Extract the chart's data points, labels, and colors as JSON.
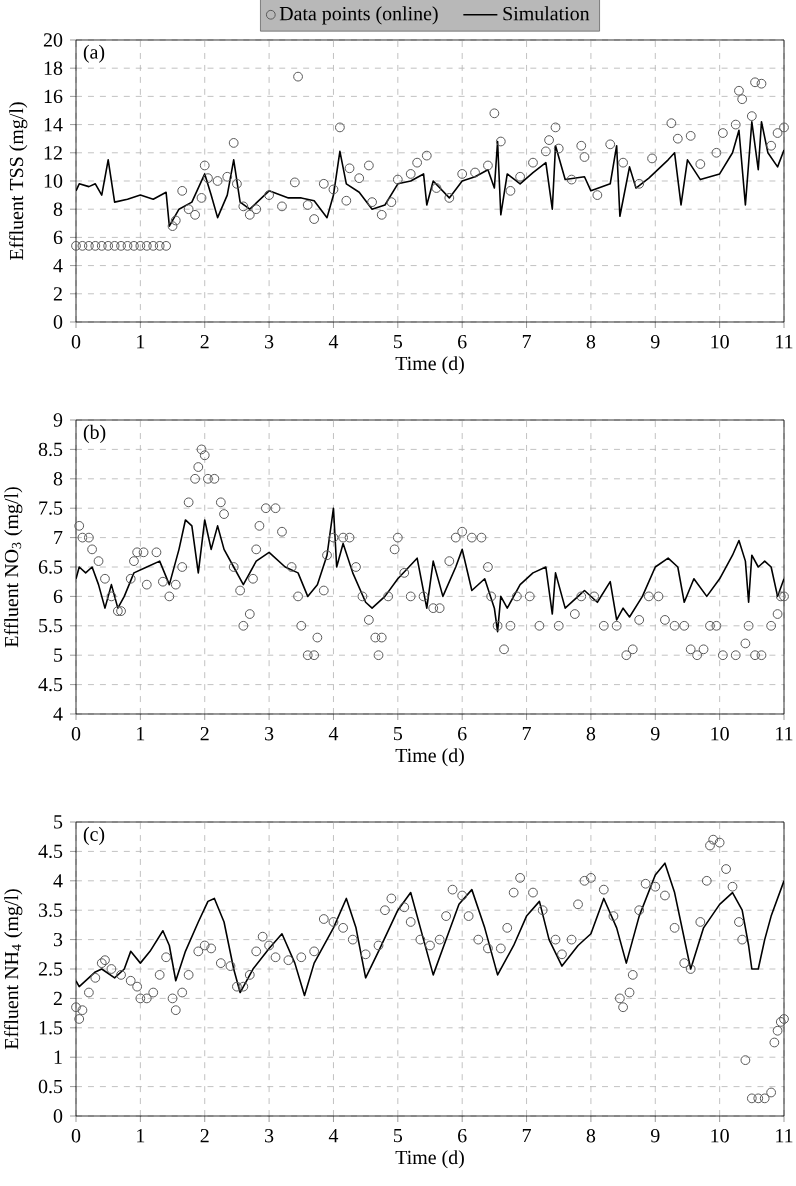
{
  "chart_data": [
    {
      "type": "line",
      "xlabel": "Time (d)",
      "ylabel": "Effluent TSS (mg/l)",
      "annotations": [
        "(a)"
      ],
      "grid": true,
      "legend": "top",
      "xlim": [
        0,
        11
      ],
      "ylim": [
        0,
        20
      ],
      "xticks": [
        0,
        1,
        2,
        3,
        4,
        5,
        6,
        7,
        8,
        9,
        10,
        11
      ],
      "yticks": [
        0,
        2,
        4,
        6,
        8,
        10,
        12,
        14,
        16,
        18,
        20
      ],
      "series": [
        {
          "name": "Data points (online)",
          "type": "scatter",
          "marker": "circle",
          "color": "#595959",
          "x": [
            0,
            0.1,
            0.2,
            0.3,
            0.4,
            0.5,
            0.6,
            0.7,
            0.8,
            0.9,
            1.0,
            1.1,
            1.2,
            1.3,
            1.4,
            1.5,
            1.55,
            1.65,
            1.75,
            1.85,
            1.95,
            2.0,
            2.05,
            2.2,
            2.35,
            2.45,
            2.5,
            2.6,
            2.7,
            2.8,
            3.0,
            3.2,
            3.4,
            3.45,
            3.6,
            3.7,
            3.85,
            4.0,
            4.1,
            4.2,
            4.25,
            4.4,
            4.55,
            4.6,
            4.75,
            4.9,
            5.0,
            5.2,
            5.3,
            5.45,
            5.6,
            5.8,
            6.0,
            6.2,
            6.4,
            6.5,
            6.6,
            6.75,
            6.9,
            7.1,
            7.3,
            7.35,
            7.45,
            7.5,
            7.7,
            7.85,
            7.9,
            8.1,
            8.3,
            8.5,
            8.75,
            8.95,
            9.25,
            9.35,
            9.55,
            9.7,
            9.95,
            10.05,
            10.25,
            10.3,
            10.35,
            10.5,
            10.55,
            10.65,
            10.8,
            10.9,
            11.0
          ],
          "values": [
            5.4,
            5.4,
            5.4,
            5.4,
            5.4,
            5.4,
            5.4,
            5.4,
            5.4,
            5.4,
            5.4,
            5.4,
            5.4,
            5.4,
            5.4,
            6.8,
            7.2,
            9.3,
            8.0,
            7.6,
            8.8,
            11.1,
            10.2,
            10.0,
            10.3,
            12.7,
            9.8,
            8.2,
            7.6,
            8.0,
            9.0,
            8.2,
            9.9,
            17.4,
            8.3,
            7.3,
            9.8,
            9.4,
            13.8,
            8.6,
            10.9,
            10.2,
            11.1,
            8.5,
            7.6,
            8.5,
            10.1,
            10.5,
            11.3,
            11.8,
            9.5,
            8.8,
            10.5,
            10.6,
            11.1,
            14.8,
            12.8,
            9.3,
            10.3,
            11.3,
            12.1,
            12.9,
            13.8,
            12.3,
            10.1,
            12.5,
            11.7,
            9.0,
            12.6,
            11.3,
            9.8,
            11.6,
            14.1,
            13.0,
            13.2,
            11.2,
            12.0,
            13.4,
            14.0,
            16.4,
            15.8,
            14.6,
            17.0,
            16.9,
            12.5,
            13.4,
            13.8
          ]
        },
        {
          "name": "Simulation",
          "marker": "none",
          "line_style": "solid",
          "color": "#000000",
          "x": [
            0,
            0.05,
            0.2,
            0.3,
            0.4,
            0.5,
            0.6,
            0.8,
            1.0,
            1.2,
            1.4,
            1.45,
            1.6,
            1.8,
            2.0,
            2.1,
            2.2,
            2.35,
            2.45,
            2.55,
            2.7,
            3.0,
            3.3,
            3.5,
            3.7,
            3.9,
            4.0,
            4.1,
            4.2,
            4.4,
            4.6,
            4.8,
            5.0,
            5.2,
            5.4,
            5.45,
            5.55,
            5.8,
            6.0,
            6.2,
            6.4,
            6.5,
            6.55,
            6.6,
            6.7,
            6.9,
            7.1,
            7.3,
            7.4,
            7.45,
            7.6,
            7.9,
            8.0,
            8.3,
            8.4,
            8.45,
            8.6,
            8.7,
            8.9,
            9.2,
            9.3,
            9.4,
            9.5,
            9.7,
            10.0,
            10.2,
            10.3,
            10.4,
            10.5,
            10.6,
            10.65,
            10.75,
            10.9,
            11.0
          ],
          "values": [
            9.3,
            9.8,
            9.6,
            9.8,
            9.0,
            11.5,
            8.5,
            8.7,
            9.0,
            8.7,
            9.2,
            6.8,
            8.0,
            8.5,
            10.5,
            9.0,
            7.4,
            9.0,
            11.5,
            8.5,
            8.0,
            9.3,
            8.8,
            8.8,
            8.6,
            7.4,
            9.0,
            12.1,
            9.8,
            9.2,
            8.0,
            8.3,
            9.8,
            10.0,
            10.5,
            8.3,
            10.0,
            8.8,
            10.0,
            10.3,
            10.8,
            9.5,
            12.8,
            7.6,
            10.5,
            9.8,
            10.6,
            11.3,
            8.0,
            12.5,
            10.1,
            10.3,
            9.3,
            9.8,
            12.5,
            7.5,
            11.0,
            9.5,
            10.2,
            11.5,
            12.0,
            8.3,
            11.5,
            10.1,
            10.5,
            12.0,
            13.6,
            8.3,
            14.2,
            10.8,
            14.2,
            12.0,
            11.0,
            12.2
          ]
        }
      ]
    },
    {
      "type": "line",
      "xlabel": "Time (d)",
      "ylabel": "Effluent NO$_{3}$ (mg/l)",
      "annotations": [
        "(b)"
      ],
      "grid": true,
      "xlim": [
        0,
        11
      ],
      "ylim": [
        4,
        9
      ],
      "xticks": [
        0,
        1,
        2,
        3,
        4,
        5,
        6,
        7,
        8,
        9,
        10,
        11
      ],
      "yticks": [
        4,
        4.5,
        5,
        5.5,
        6,
        6.5,
        7,
        7.5,
        8,
        8.5,
        9
      ],
      "series": [
        {
          "type": "scatter",
          "marker": "circle",
          "color": "#595959",
          "x": [
            0.05,
            0.1,
            0.2,
            0.25,
            0.35,
            0.45,
            0.55,
            0.65,
            0.7,
            0.85,
            0.9,
            0.95,
            1.05,
            1.1,
            1.25,
            1.35,
            1.45,
            1.55,
            1.65,
            1.75,
            1.85,
            1.9,
            1.95,
            2.0,
            2.05,
            2.15,
            2.25,
            2.3,
            2.45,
            2.55,
            2.6,
            2.7,
            2.75,
            2.8,
            2.85,
            2.95,
            3.1,
            3.2,
            3.35,
            3.45,
            3.5,
            3.6,
            3.7,
            3.75,
            3.85,
            3.9,
            4.0,
            4.15,
            4.25,
            4.35,
            4.45,
            4.55,
            4.65,
            4.7,
            4.75,
            4.85,
            4.95,
            5.0,
            5.1,
            5.2,
            5.4,
            5.55,
            5.65,
            5.8,
            5.9,
            6.0,
            6.15,
            6.3,
            6.4,
            6.45,
            6.55,
            6.65,
            6.75,
            6.85,
            7.05,
            7.2,
            7.5,
            7.75,
            7.85,
            8.05,
            8.2,
            8.4,
            8.55,
            8.65,
            8.75,
            8.9,
            9.05,
            9.15,
            9.3,
            9.45,
            9.55,
            9.65,
            9.75,
            9.85,
            9.95,
            10.05,
            10.25,
            10.4,
            10.45,
            10.55,
            10.65,
            10.8,
            10.9,
            10.95,
            11.0
          ],
          "values": [
            7.2,
            7.0,
            7.0,
            6.8,
            6.6,
            6.3,
            6.0,
            5.75,
            5.75,
            6.3,
            6.6,
            6.75,
            6.75,
            6.2,
            6.75,
            6.25,
            6.0,
            6.2,
            6.5,
            7.6,
            8.0,
            8.2,
            8.5,
            8.4,
            8.0,
            8.0,
            7.6,
            7.4,
            6.5,
            6.1,
            5.5,
            5.7,
            6.3,
            6.8,
            7.2,
            7.5,
            7.5,
            7.1,
            6.5,
            6.0,
            5.5,
            5.0,
            5.0,
            5.3,
            6.1,
            6.7,
            7.0,
            7.0,
            7.0,
            6.5,
            6.0,
            5.6,
            5.3,
            5.0,
            5.3,
            6.0,
            6.8,
            7.0,
            6.4,
            6.0,
            6.0,
            5.8,
            5.8,
            6.6,
            7.0,
            7.1,
            7.0,
            7.0,
            6.5,
            6.0,
            5.5,
            5.1,
            5.5,
            6.0,
            6.0,
            5.5,
            5.5,
            5.7,
            6.0,
            6.0,
            5.5,
            5.5,
            5.0,
            5.1,
            5.6,
            6.0,
            6.0,
            5.6,
            5.5,
            5.5,
            5.1,
            5.0,
            5.1,
            5.5,
            5.5,
            5.0,
            5.0,
            5.2,
            5.5,
            5.0,
            5.0,
            5.5,
            5.7,
            6.0,
            6.0
          ]
        },
        {
          "marker": "none",
          "line_style": "solid",
          "color": "#000000",
          "x": [
            0,
            0.05,
            0.15,
            0.25,
            0.35,
            0.45,
            0.55,
            0.65,
            0.75,
            0.9,
            1.1,
            1.3,
            1.45,
            1.6,
            1.7,
            1.8,
            1.9,
            2.0,
            2.1,
            2.2,
            2.3,
            2.45,
            2.6,
            2.8,
            3.0,
            3.25,
            3.45,
            3.6,
            3.75,
            3.9,
            4.0,
            4.05,
            4.15,
            4.3,
            4.5,
            4.6,
            4.8,
            5.0,
            5.3,
            5.45,
            5.55,
            5.7,
            5.9,
            6.0,
            6.15,
            6.35,
            6.5,
            6.55,
            6.6,
            6.7,
            6.9,
            7.1,
            7.3,
            7.4,
            7.45,
            7.6,
            7.8,
            7.9,
            8.1,
            8.3,
            8.4,
            8.5,
            8.6,
            8.8,
            9.0,
            9.2,
            9.35,
            9.45,
            9.6,
            9.8,
            10.0,
            10.2,
            10.3,
            10.4,
            10.45,
            10.5,
            10.6,
            10.7,
            10.8,
            10.9,
            11.0
          ],
          "values": [
            6.3,
            6.5,
            6.4,
            6.5,
            6.2,
            5.8,
            6.2,
            5.8,
            6.0,
            6.4,
            6.5,
            6.6,
            6.2,
            6.8,
            7.3,
            7.2,
            6.4,
            7.3,
            6.8,
            7.2,
            6.8,
            6.5,
            6.2,
            6.6,
            6.75,
            6.5,
            6.4,
            6.0,
            6.2,
            6.7,
            7.5,
            6.5,
            6.9,
            6.4,
            5.9,
            5.8,
            6.0,
            6.3,
            6.65,
            5.8,
            6.6,
            6.0,
            6.5,
            6.8,
            6.1,
            6.3,
            5.8,
            5.4,
            6.0,
            5.8,
            6.2,
            6.4,
            6.5,
            5.7,
            6.4,
            5.8,
            6.0,
            6.1,
            5.9,
            6.25,
            5.6,
            5.8,
            5.65,
            6.0,
            6.5,
            6.65,
            6.5,
            5.9,
            6.3,
            6.0,
            6.3,
            6.7,
            6.95,
            6.6,
            5.9,
            6.7,
            6.5,
            6.6,
            6.5,
            6.0,
            6.3
          ]
        }
      ]
    },
    {
      "type": "line",
      "xlabel": "Time (d)",
      "ylabel": "Effluent NH$_{4}$ (mg/l)",
      "annotations": [
        "(c)"
      ],
      "grid": true,
      "xlim": [
        0,
        11
      ],
      "ylim": [
        0,
        5
      ],
      "xticks": [
        0,
        1,
        2,
        3,
        4,
        5,
        6,
        7,
        8,
        9,
        10,
        11
      ],
      "yticks": [
        0,
        0.5,
        1,
        1.5,
        2,
        2.5,
        3,
        3.5,
        4,
        4.5,
        5
      ],
      "series": [
        {
          "type": "scatter",
          "marker": "circle",
          "color": "#595959",
          "x": [
            0.0,
            0.05,
            0.1,
            0.2,
            0.3,
            0.4,
            0.45,
            0.55,
            0.7,
            0.85,
            0.95,
            1.0,
            1.1,
            1.2,
            1.3,
            1.4,
            1.5,
            1.55,
            1.65,
            1.75,
            1.9,
            2.0,
            2.1,
            2.25,
            2.4,
            2.5,
            2.6,
            2.7,
            2.8,
            2.9,
            3.0,
            3.1,
            3.3,
            3.5,
            3.7,
            3.85,
            4.0,
            4.15,
            4.3,
            4.5,
            4.7,
            4.8,
            4.9,
            5.1,
            5.2,
            5.35,
            5.5,
            5.65,
            5.75,
            5.85,
            6.0,
            6.1,
            6.25,
            6.4,
            6.6,
            6.7,
            6.8,
            6.9,
            7.1,
            7.25,
            7.45,
            7.55,
            7.7,
            7.8,
            7.9,
            8.0,
            8.2,
            8.35,
            8.45,
            8.5,
            8.6,
            8.65,
            8.75,
            8.85,
            9.0,
            9.15,
            9.3,
            9.45,
            9.55,
            9.7,
            9.8,
            9.85,
            9.9,
            10.0,
            10.1,
            10.2,
            10.3,
            10.35,
            10.4,
            10.5,
            10.6,
            10.7,
            10.8,
            10.85,
            10.9,
            10.95,
            11.0
          ],
          "values": [
            1.85,
            1.65,
            1.8,
            2.1,
            2.35,
            2.6,
            2.65,
            2.5,
            2.4,
            2.3,
            2.2,
            2.0,
            2.0,
            2.1,
            2.4,
            2.7,
            2.0,
            1.8,
            2.1,
            2.4,
            2.8,
            2.9,
            2.85,
            2.6,
            2.55,
            2.2,
            2.2,
            2.4,
            2.8,
            3.05,
            2.9,
            2.7,
            2.65,
            2.7,
            2.8,
            3.35,
            3.3,
            3.2,
            3.0,
            2.75,
            2.9,
            3.5,
            3.7,
            3.55,
            3.3,
            3.0,
            2.9,
            3.0,
            3.4,
            3.85,
            3.75,
            3.4,
            3.0,
            2.85,
            2.85,
            3.2,
            3.8,
            4.05,
            3.8,
            3.5,
            3.0,
            2.75,
            3.0,
            3.6,
            4.0,
            4.05,
            3.85,
            3.4,
            2.0,
            1.85,
            2.1,
            2.4,
            3.5,
            3.95,
            3.9,
            3.75,
            3.2,
            2.6,
            2.5,
            3.3,
            4.0,
            4.6,
            4.7,
            4.65,
            4.2,
            3.9,
            3.3,
            3.0,
            0.95,
            0.3,
            0.3,
            0.3,
            0.4,
            1.25,
            1.45,
            1.6,
            1.65
          ]
        },
        {
          "marker": "none",
          "line_style": "solid",
          "color": "#000000",
          "x": [
            0,
            0.05,
            0.3,
            0.4,
            0.6,
            0.75,
            0.85,
            1.0,
            1.15,
            1.35,
            1.45,
            1.55,
            1.7,
            1.9,
            2.05,
            2.15,
            2.3,
            2.45,
            2.55,
            2.75,
            3.0,
            3.2,
            3.4,
            3.55,
            3.7,
            4.0,
            4.2,
            4.35,
            4.5,
            4.7,
            5.0,
            5.2,
            5.35,
            5.55,
            5.75,
            5.95,
            6.15,
            6.35,
            6.55,
            6.8,
            7.0,
            7.2,
            7.35,
            7.55,
            7.8,
            8.0,
            8.2,
            8.4,
            8.55,
            8.75,
            9.0,
            9.15,
            9.3,
            9.55,
            9.75,
            10.0,
            10.2,
            10.35,
            10.45,
            10.5,
            10.6,
            10.7,
            10.8,
            10.9,
            11.0
          ],
          "values": [
            2.3,
            2.2,
            2.45,
            2.5,
            2.35,
            2.5,
            2.8,
            2.6,
            2.8,
            3.15,
            2.9,
            2.3,
            2.8,
            3.3,
            3.65,
            3.7,
            3.3,
            2.5,
            2.1,
            2.5,
            2.85,
            3.1,
            2.6,
            2.05,
            2.6,
            3.2,
            3.7,
            3.2,
            2.35,
            2.8,
            3.5,
            3.8,
            3.2,
            2.4,
            3.0,
            3.6,
            3.85,
            3.2,
            2.4,
            2.9,
            3.4,
            3.65,
            3.0,
            2.55,
            2.9,
            3.1,
            3.7,
            3.2,
            2.6,
            3.4,
            4.1,
            4.3,
            3.8,
            2.5,
            3.2,
            3.6,
            3.8,
            3.5,
            2.9,
            2.5,
            2.5,
            3.0,
            3.4,
            3.7,
            4.0
          ]
        }
      ]
    }
  ]
}
